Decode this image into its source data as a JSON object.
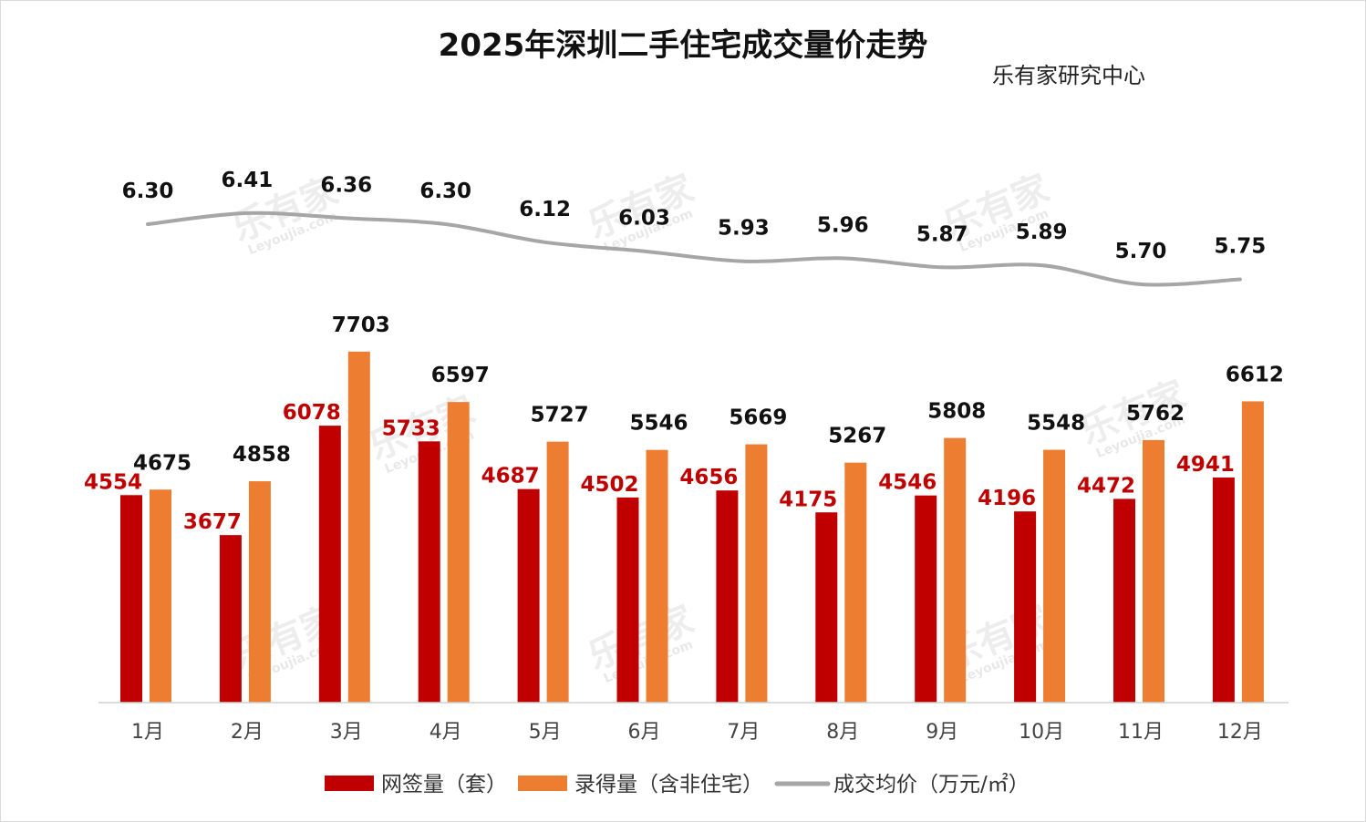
{
  "title": "2025年深圳二手住宅成交量价走势",
  "source": "乐有家研究中心",
  "watermark": {
    "main": "乐有家",
    "sub": "Leyoujia.com"
  },
  "colors": {
    "series_signed": "#c00000",
    "series_recorded": "#ed7d31",
    "series_price": "#a6a6a6",
    "label_signed": "#c00000",
    "label_other": "#111111"
  },
  "chart_data": {
    "type": "bar",
    "title": "2025年深圳二手住宅成交量价走势",
    "categories": [
      "1月",
      "2月",
      "3月",
      "4月",
      "5月",
      "6月",
      "7月",
      "8月",
      "9月",
      "10月",
      "11月",
      "12月"
    ],
    "series": [
      {
        "name": "网签量（套）",
        "type": "bar",
        "values": [
          4554,
          3677,
          6078,
          5733,
          4687,
          4502,
          4656,
          4175,
          4546,
          4196,
          4472,
          4941
        ]
      },
      {
        "name": "录得量（含非住宅）",
        "type": "bar",
        "values": [
          4675,
          4858,
          7703,
          6597,
          5727,
          5546,
          5669,
          5267,
          5808,
          5548,
          5762,
          6612
        ]
      },
      {
        "name": "成交均价（万元/㎡）",
        "type": "line",
        "values": [
          6.3,
          6.41,
          6.36,
          6.3,
          6.12,
          6.03,
          5.93,
          5.96,
          5.87,
          5.89,
          5.7,
          5.75
        ],
        "labels": [
          "6.30",
          "6.41",
          "6.36",
          "6.30",
          "6.12",
          "6.03",
          "5.93",
          "5.96",
          "5.87",
          "5.89",
          "5.70",
          "5.75"
        ]
      }
    ],
    "ylim": [
      0,
      9000
    ],
    "y2lim": [
      4.0,
      7.5
    ],
    "grid": false,
    "legend_position": "bottom"
  }
}
